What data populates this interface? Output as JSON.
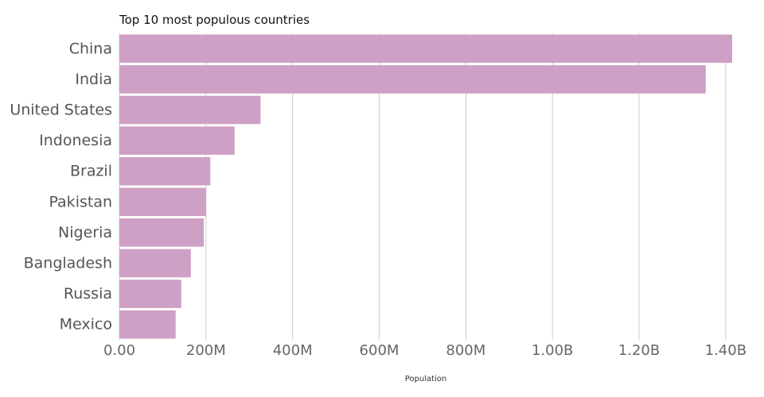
{
  "chart_data": {
    "type": "bar",
    "orientation": "horizontal",
    "title": "Top 10 most populous countries",
    "xlabel": "Population",
    "ylabel": "",
    "categories": [
      "China",
      "India",
      "United States",
      "Indonesia",
      "Brazil",
      "Pakistan",
      "Nigeria",
      "Bangladesh",
      "Russia",
      "Mexico"
    ],
    "values": [
      1415000000,
      1354000000,
      326000000,
      266000000,
      210000000,
      200000000,
      195000000,
      165000000,
      143000000,
      130000000
    ],
    "xlim": [
      0,
      1415000000
    ],
    "x_ticks": [
      0,
      200000000,
      400000000,
      600000000,
      800000000,
      1000000000,
      1200000000,
      1400000000
    ],
    "x_tick_labels": [
      "0.00",
      "200M",
      "400M",
      "600M",
      "800M",
      "1.00B",
      "1.20B",
      "1.40B"
    ],
    "grid": true,
    "bar_color": "#cfa0c5",
    "legend": "none"
  }
}
